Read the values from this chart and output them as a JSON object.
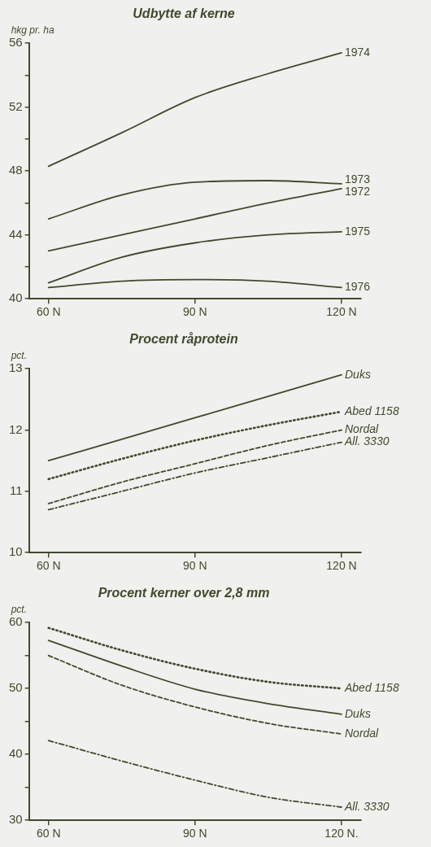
{
  "chart_data": [
    {
      "type": "line",
      "title": "Udbytte af kerne",
      "ylabel": "hkg pr. ha",
      "x": [
        60,
        75,
        90,
        105,
        120
      ],
      "xlim": [
        56,
        124
      ],
      "xticks": [
        {
          "value": 60,
          "label": "60 N"
        },
        {
          "value": 90,
          "label": "90 N"
        },
        {
          "value": 120,
          "label": "120 N"
        }
      ],
      "ylim": [
        40,
        56
      ],
      "yticks": [
        40,
        {
          "value": 42,
          "label": null
        },
        44,
        {
          "value": 46,
          "label": null
        },
        48,
        {
          "value": 50,
          "label": null
        },
        52,
        {
          "value": 54,
          "label": null
        },
        56
      ],
      "series": [
        {
          "name": "1974",
          "color": "#3f4a2c",
          "line_style": "solid",
          "values": [
            48.3,
            50.4,
            52.6,
            54.1,
            55.4
          ]
        },
        {
          "name": "1973",
          "color": "#3f4a2c",
          "line_style": "solid",
          "values": [
            45.0,
            46.5,
            47.3,
            47.4,
            47.2
          ]
        },
        {
          "name": "1972",
          "color": "#3f4a2c",
          "line_style": "solid",
          "values": [
            43.0,
            44.0,
            45.0,
            46.0,
            46.9
          ]
        },
        {
          "name": "1975",
          "color": "#3f4a2c",
          "line_style": "solid",
          "values": [
            41.0,
            42.6,
            43.5,
            44.0,
            44.2
          ]
        },
        {
          "name": "1976",
          "color": "#3f4a2c",
          "line_style": "solid",
          "values": [
            40.7,
            41.1,
            41.2,
            41.1,
            40.7
          ]
        }
      ]
    },
    {
      "type": "line",
      "title": "Procent råprotein",
      "ylabel": "pct.",
      "x": [
        60,
        75,
        90,
        105,
        120
      ],
      "xlim": [
        56,
        124
      ],
      "xticks": [
        {
          "value": 60,
          "label": "60 N"
        },
        {
          "value": 90,
          "label": "90 N"
        },
        {
          "value": 120,
          "label": "120 N"
        }
      ],
      "ylim": [
        10,
        13
      ],
      "yticks": [
        10,
        11,
        12,
        13
      ],
      "series": [
        {
          "name": "Duks",
          "color": "#3f4a2c",
          "line_style": "solid",
          "values": [
            11.5,
            11.85,
            12.2,
            12.55,
            12.9
          ]
        },
        {
          "name": "Abed 1158",
          "color": "#3f4a2c",
          "line_style": "dotted",
          "values": [
            11.2,
            11.53,
            11.83,
            12.08,
            12.3
          ]
        },
        {
          "name": "Nordal",
          "color": "#3f4a2c",
          "line_style": "dashed",
          "values": [
            10.8,
            11.15,
            11.45,
            11.75,
            12.0
          ]
        },
        {
          "name": "All. 3330",
          "color": "#3f4a2c",
          "line_style": "dashdot",
          "values": [
            10.7,
            11.0,
            11.3,
            11.55,
            11.8
          ]
        }
      ]
    },
    {
      "type": "line",
      "title": "Procent kerner over 2,8 mm",
      "ylabel": "pct.",
      "x": [
        60,
        75,
        90,
        105,
        120
      ],
      "xlim": [
        56,
        124
      ],
      "xticks": [
        {
          "value": 60,
          "label": "60 N"
        },
        {
          "value": 90,
          "label": "90 N"
        },
        {
          "value": 120,
          "label": "120 N."
        }
      ],
      "ylim": [
        30,
        60
      ],
      "yticks": [
        30,
        {
          "value": 35,
          "label": null
        },
        40,
        {
          "value": 45,
          "label": null
        },
        50,
        {
          "value": 55,
          "label": null
        },
        60
      ],
      "series": [
        {
          "name": "Abed 1158",
          "color": "#3f4a2c",
          "line_style": "dotted",
          "values": [
            59.2,
            55.8,
            53.0,
            51.0,
            50.0
          ]
        },
        {
          "name": "Duks",
          "color": "#3f4a2c",
          "line_style": "solid",
          "values": [
            57.3,
            53.4,
            49.9,
            47.7,
            46.1
          ]
        },
        {
          "name": "Nordal",
          "color": "#3f4a2c",
          "line_style": "dashed",
          "values": [
            55.0,
            50.5,
            47.2,
            44.7,
            43.1
          ]
        },
        {
          "name": "All. 3330",
          "color": "#3f4a2c",
          "line_style": "dashdot",
          "values": [
            42.1,
            39.0,
            36.1,
            33.5,
            32.0
          ]
        }
      ]
    }
  ]
}
